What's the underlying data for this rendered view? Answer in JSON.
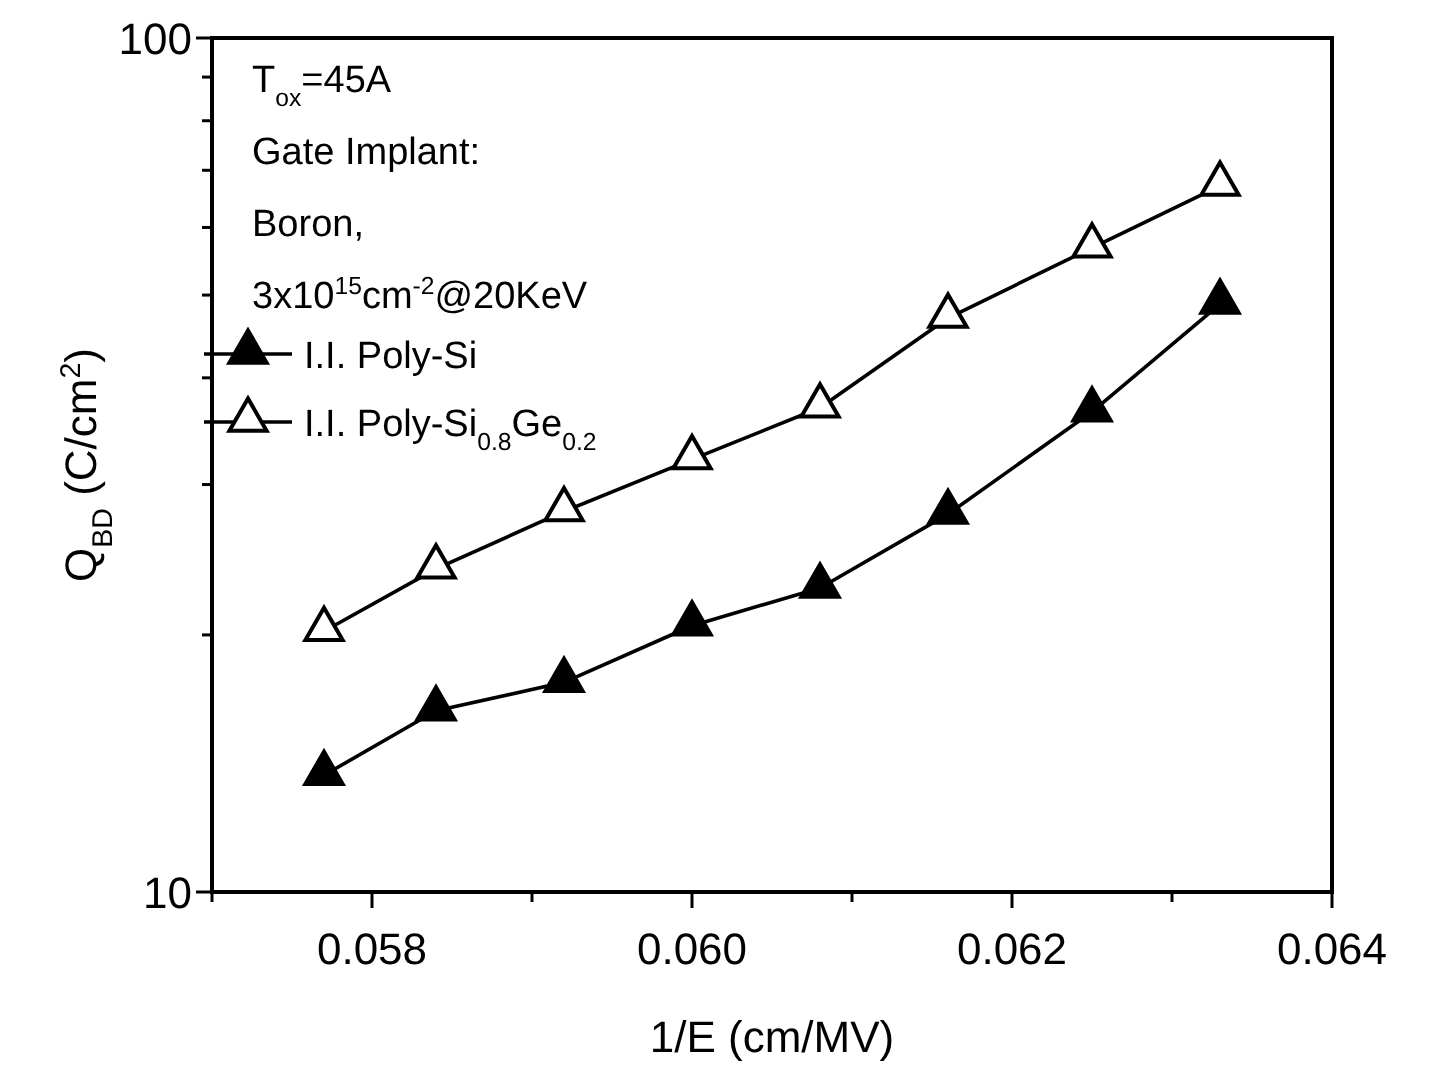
{
  "chart_data": {
    "type": "line",
    "xlabel": "1/E (cm/MV)",
    "ylabel": "Q$_{BD}$ (C/cm$^{2}$)",
    "log": "y",
    "xlim": [
      0.057,
      0.064
    ],
    "ylim": [
      10,
      100
    ],
    "xticks": [
      {
        "value": 0.057,
        "label": null
      },
      {
        "value": 0.058,
        "label": "0.058"
      },
      {
        "value": 0.059,
        "label": null
      },
      {
        "value": 0.06,
        "label": "0.060"
      },
      {
        "value": 0.061,
        "label": null
      },
      {
        "value": 0.062,
        "label": "0.062"
      },
      {
        "value": 0.063,
        "label": null
      },
      {
        "value": 0.064,
        "label": "0.064"
      }
    ],
    "yticks": [
      10,
      {
        "value": 20,
        "label": null
      },
      {
        "value": 30,
        "label": null
      },
      {
        "value": 40,
        "label": null
      },
      {
        "value": 50,
        "label": null
      },
      {
        "value": 60,
        "label": null
      },
      {
        "value": 70,
        "label": null
      },
      {
        "value": 80,
        "label": null
      },
      {
        "value": 90,
        "label": null
      },
      100
    ],
    "x": [
      0.0577,
      0.0584,
      0.0592,
      0.06,
      0.0608,
      0.0616,
      0.0625,
      0.0633
    ],
    "series": [
      {
        "name": "I.I. Poly-Si",
        "color": "#000000",
        "values": [
          13.7,
          16.3,
          17.6,
          20.5,
          22.7,
          27.7,
          36.5,
          48.8
        ]
      },
      {
        "name": "I.I. Poly-Si$_{0.8}$Ge$_{0.2}$",
        "color": "#000000",
        "values": [
          20.2,
          23.9,
          27.9,
          32.1,
          36.9,
          47.0,
          56.8,
          67.1
        ]
      }
    ],
    "marker": "triangle",
    "line_style": "solid",
    "legend": "top left",
    "grid": false,
    "annotations": [
      "T$_{ox}$=45A",
      "Gate Implant:",
      "Boron,",
      "3x10$^{15}$cm$^{-2}$@20KeV"
    ]
  }
}
